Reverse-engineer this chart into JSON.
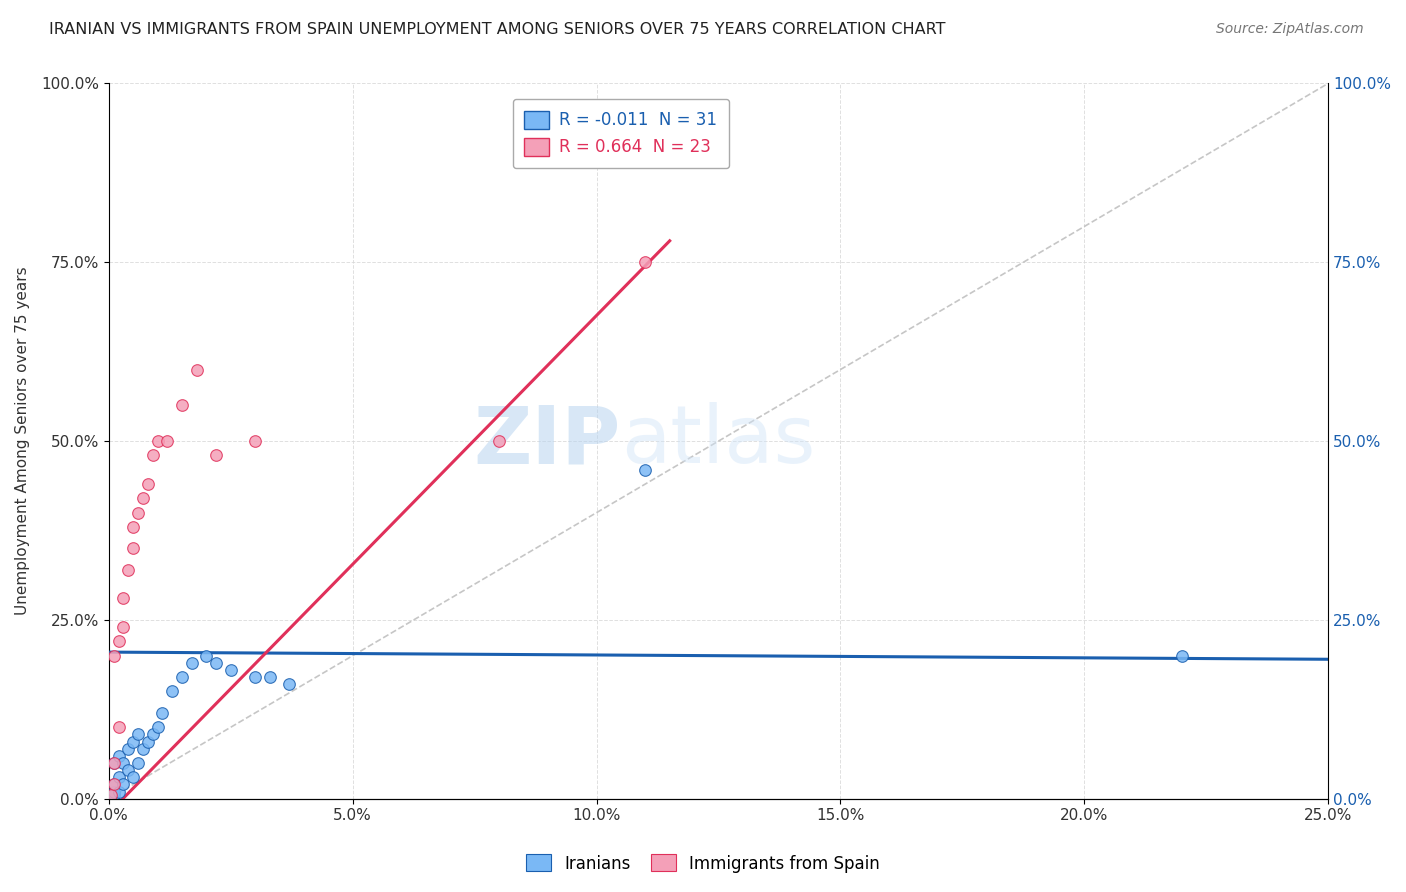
{
  "title": "IRANIAN VS IMMIGRANTS FROM SPAIN UNEMPLOYMENT AMONG SENIORS OVER 75 YEARS CORRELATION CHART",
  "source": "Source: ZipAtlas.com",
  "ylabel": "Unemployment Among Seniors over 75 years",
  "xlim": [
    0.0,
    0.25
  ],
  "ylim": [
    0.0,
    1.0
  ],
  "iranians_color": "#7ab8f5",
  "spain_color": "#f4a0b8",
  "iranians_line_color": "#1a5faf",
  "spain_line_color": "#e0305a",
  "ref_line_color": "#c0c0c0",
  "legend_iranian_r": "-0.011",
  "legend_iranian_n": "31",
  "legend_spain_r": "0.664",
  "legend_spain_n": "23",
  "background_color": "#ffffff",
  "grid_color": "#d8d8d8",
  "watermark_zip": "ZIP",
  "watermark_atlas": "atlas",
  "marker_size": 70,
  "iranians_x": [
    0.001,
    0.001,
    0.001,
    0.001,
    0.002,
    0.002,
    0.002,
    0.003,
    0.003,
    0.004,
    0.004,
    0.005,
    0.005,
    0.006,
    0.006,
    0.007,
    0.008,
    0.009,
    0.01,
    0.011,
    0.013,
    0.015,
    0.017,
    0.02,
    0.022,
    0.025,
    0.03,
    0.033,
    0.037,
    0.11,
    0.22
  ],
  "iranians_y": [
    0.005,
    0.01,
    0.02,
    0.05,
    0.01,
    0.03,
    0.06,
    0.02,
    0.05,
    0.04,
    0.07,
    0.03,
    0.08,
    0.05,
    0.09,
    0.07,
    0.08,
    0.09,
    0.1,
    0.12,
    0.15,
    0.17,
    0.19,
    0.2,
    0.19,
    0.18,
    0.17,
    0.17,
    0.16,
    0.46,
    0.2
  ],
  "spain_x": [
    0.0005,
    0.001,
    0.001,
    0.001,
    0.002,
    0.002,
    0.003,
    0.003,
    0.004,
    0.005,
    0.005,
    0.006,
    0.007,
    0.008,
    0.009,
    0.01,
    0.012,
    0.015,
    0.018,
    0.022,
    0.03,
    0.08,
    0.11
  ],
  "spain_y": [
    0.005,
    0.02,
    0.05,
    0.2,
    0.1,
    0.22,
    0.24,
    0.28,
    0.32,
    0.35,
    0.38,
    0.4,
    0.42,
    0.44,
    0.48,
    0.5,
    0.5,
    0.55,
    0.6,
    0.48,
    0.5,
    0.5,
    0.75
  ],
  "iran_line_x0": 0.0,
  "iran_line_x1": 0.25,
  "iran_line_y0": 0.205,
  "iran_line_y1": 0.195,
  "spain_line_x0": 0.0,
  "spain_line_x1": 0.115,
  "spain_line_y0": -0.02,
  "spain_line_y1": 0.78
}
